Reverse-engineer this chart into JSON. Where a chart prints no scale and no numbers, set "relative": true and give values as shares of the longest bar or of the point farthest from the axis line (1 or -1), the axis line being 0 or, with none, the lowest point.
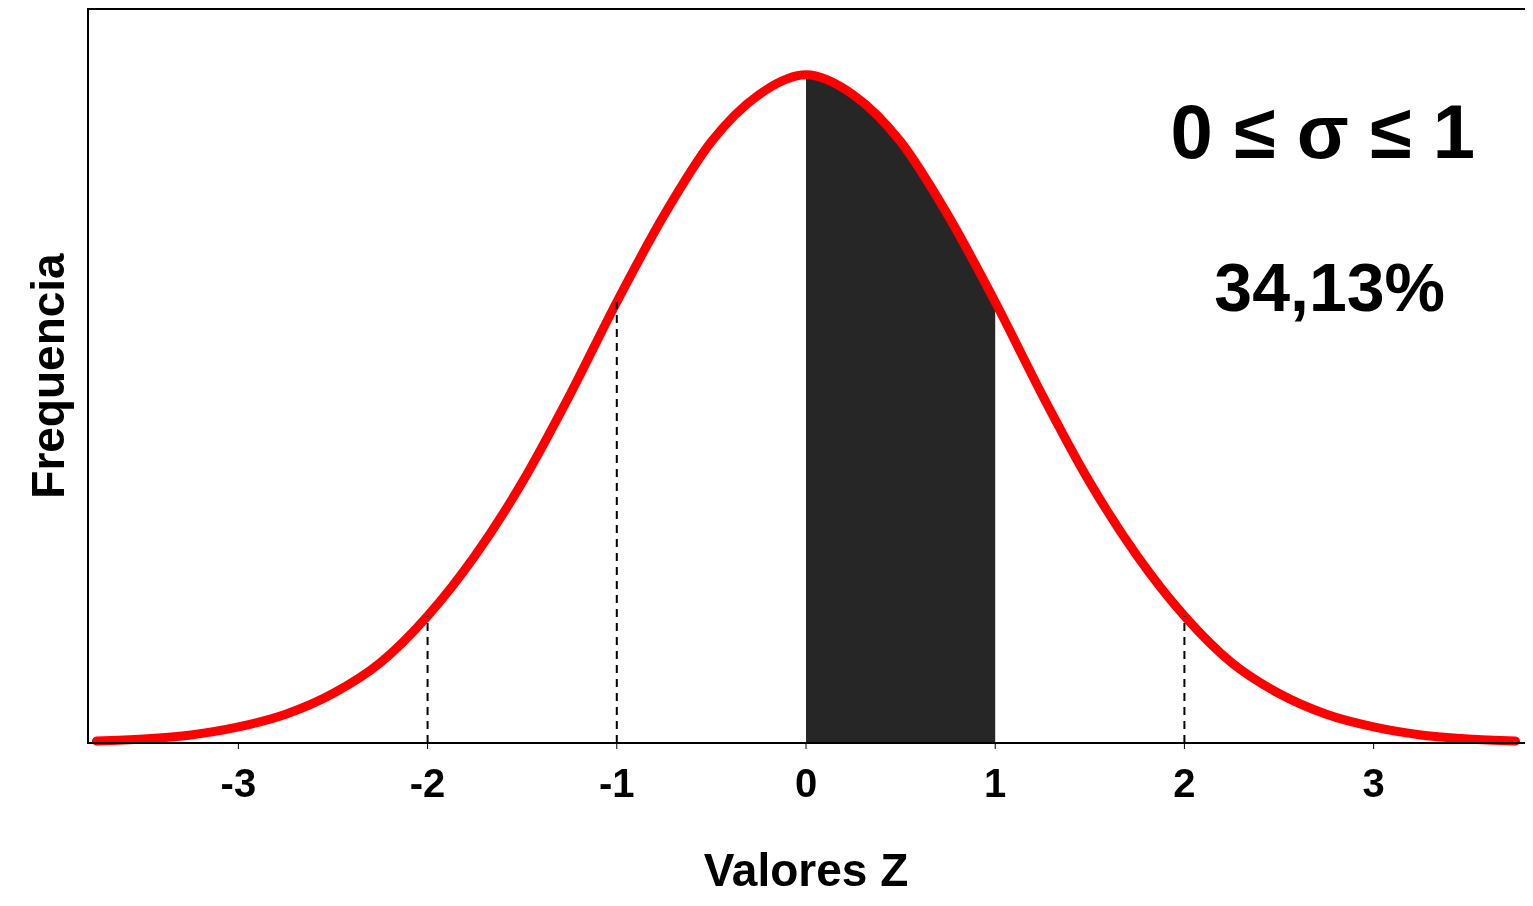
{
  "chart_data": {
    "type": "line",
    "relative": true,
    "xlabel": "Valores Z",
    "ylabel": "Frequencia",
    "xlim": [
      -3.8,
      3.8
    ],
    "xticks": [
      -3,
      -2,
      -1,
      0,
      1,
      2,
      3
    ],
    "series": [
      {
        "color": "#ff0000",
        "x": [
          -3.75,
          -3.5,
          -3.25,
          -3,
          -2.75,
          -2.5,
          -2.25,
          -2,
          -1.75,
          -1.5,
          -1.25,
          -1,
          -0.75,
          -0.5,
          -0.25,
          0,
          0.25,
          0.5,
          0.75,
          1,
          1.25,
          1.5,
          1.75,
          2,
          2.25,
          2.5,
          2.75,
          3,
          3.25,
          3.5,
          3.75
        ],
        "values": [
          0.003,
          0.006,
          0.012,
          0.024,
          0.043,
          0.074,
          0.12,
          0.19,
          0.28,
          0.39,
          0.52,
          0.66,
          0.79,
          0.9,
          0.97,
          1,
          0.97,
          0.9,
          0.79,
          0.66,
          0.52,
          0.39,
          0.28,
          0.19,
          0.12,
          0.074,
          0.043,
          0.024,
          0.012,
          0.006,
          0.003
        ]
      },
      {
        "type": "area",
        "color": "#000000",
        "x": [
          0,
          0.25,
          0.5,
          0.75,
          1
        ],
        "values": [
          1,
          0.97,
          0.9,
          0.79,
          0.66
        ]
      }
    ],
    "ref_lines": [
      {
        "axis": "x",
        "value": -2,
        "line_style": "dashed"
      },
      {
        "axis": "x",
        "value": -1,
        "line_style": "dashed"
      },
      {
        "axis": "x",
        "value": 2,
        "line_style": "dashed"
      }
    ],
    "annotations": [
      "0 ≤ σ ≤ 1",
      "34,13%"
    ],
    "marker": "none",
    "grid": false,
    "legend": false
  }
}
